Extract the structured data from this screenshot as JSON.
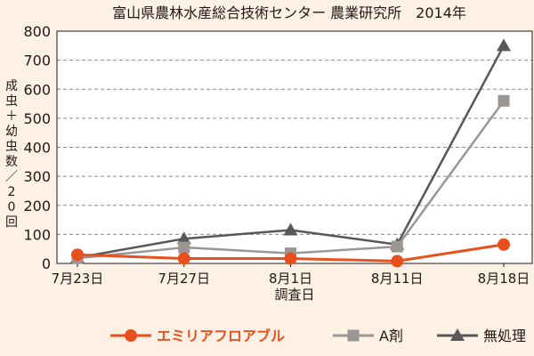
{
  "chart_data": {
    "type": "line",
    "title": "富山県農林水産総合技術センター 農業研究所　2014年",
    "xlabel": "調査日",
    "ylabel": "成虫＋幼虫数／20回",
    "categories": [
      "7月23日",
      "7月27日",
      "8月1日",
      "8月11日",
      "8月18日"
    ],
    "ylim": [
      0,
      800
    ],
    "yticks": [
      0,
      100,
      200,
      300,
      400,
      500,
      600,
      700,
      800
    ],
    "grid": true,
    "legend_position": "bottom",
    "series": [
      {
        "name": "エミリアフロアブル",
        "values": [
          30,
          17,
          17,
          8,
          65
        ],
        "marker": "circle",
        "color": "#e8501e"
      },
      {
        "name": "A剤",
        "values": [
          18,
          55,
          35,
          58,
          560
        ],
        "marker": "square",
        "color": "#9a9693"
      },
      {
        "name": "無処理",
        "values": [
          20,
          85,
          115,
          65,
          750
        ],
        "marker": "triangle",
        "color": "#595757"
      }
    ]
  }
}
